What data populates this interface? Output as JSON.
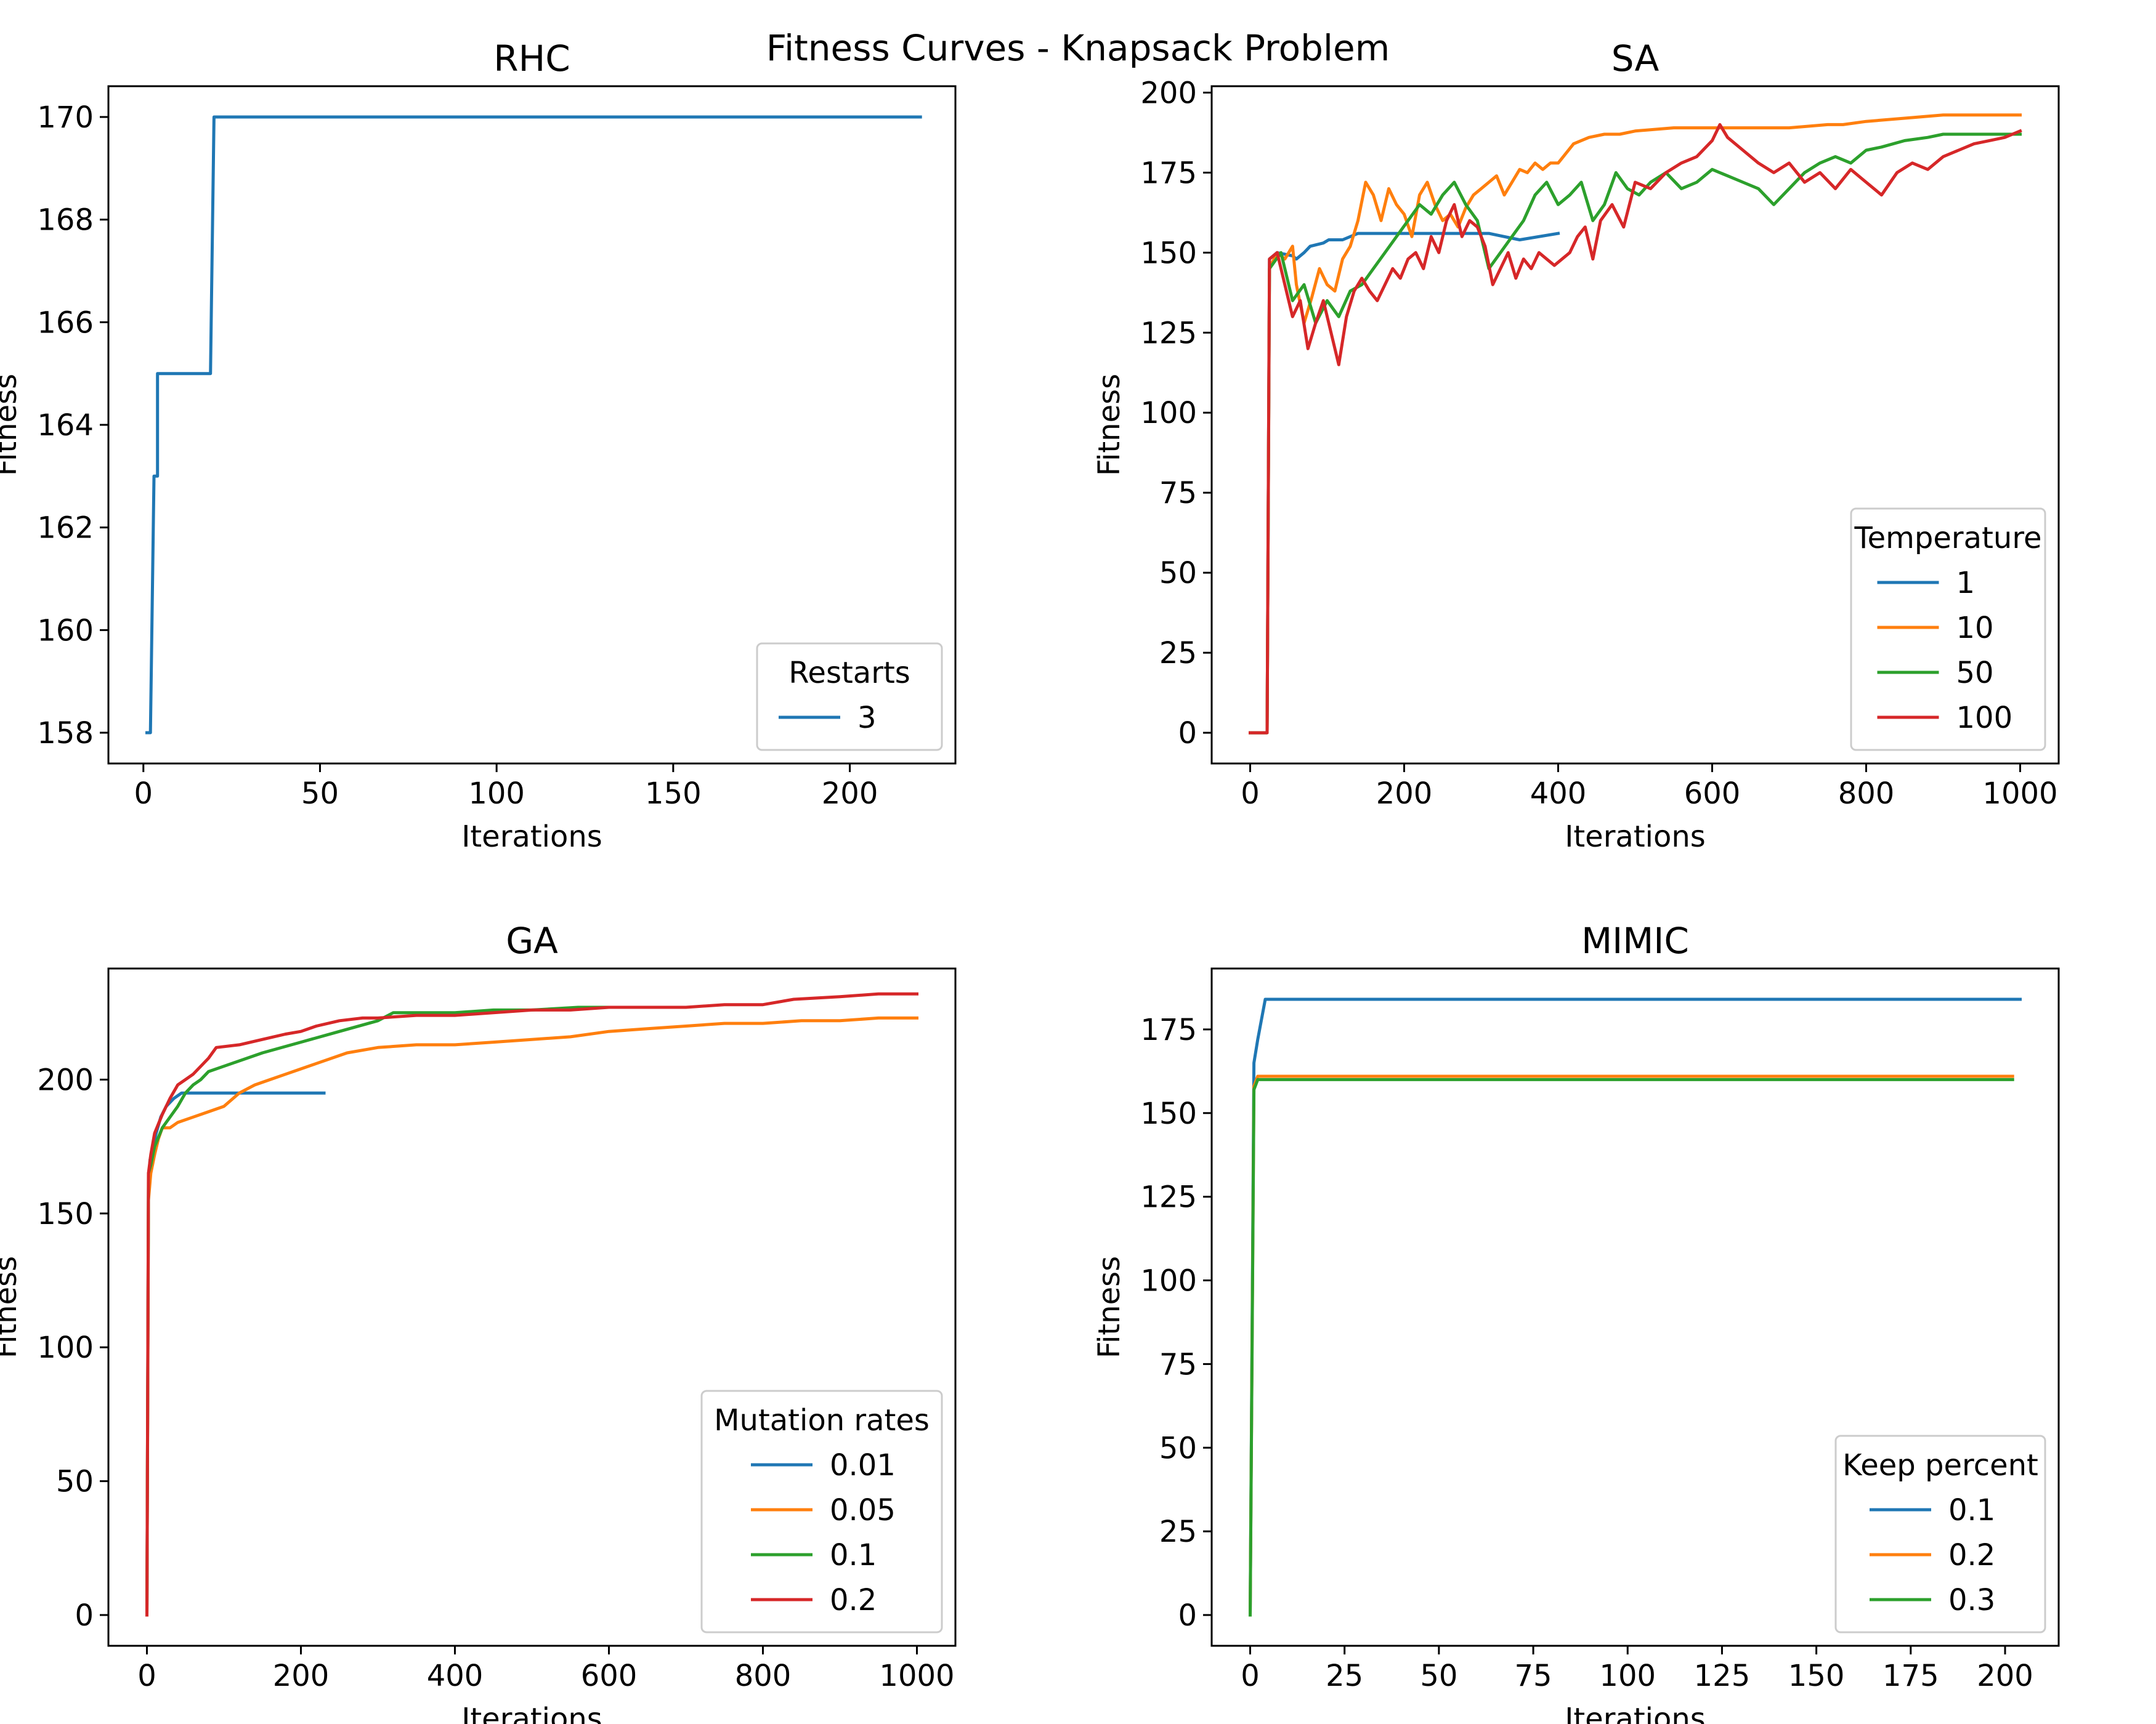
{
  "figure_title": "Fitness Curves - Knapsack Problem",
  "colors": {
    "blue": "#1f77b4",
    "orange": "#ff7f0e",
    "green": "#2ca02c",
    "red": "#d62728"
  },
  "chart_data": [
    {
      "id": "rhc",
      "type": "line",
      "title": "RHC",
      "xlabel": "Iterations",
      "ylabel": "Fitness",
      "xlim": [
        -9.9,
        229.9
      ],
      "ylim": [
        157.4,
        170.6
      ],
      "xticks": [
        0,
        50,
        100,
        150,
        200
      ],
      "yticks": [
        158,
        160,
        162,
        164,
        166,
        168,
        170
      ],
      "legend": {
        "title": "Restarts",
        "placement": "lower right"
      },
      "series": [
        {
          "name": "3",
          "color": "#1f77b4",
          "x": [
            1,
            2,
            3,
            3,
            4,
            4,
            19,
            20,
            20,
            220
          ],
          "y": [
            158,
            158,
            163,
            163,
            163,
            165,
            165,
            170,
            170,
            170
          ]
        }
      ]
    },
    {
      "id": "sa",
      "type": "line",
      "title": "SA",
      "xlabel": "Iterations",
      "ylabel": "Fitness",
      "xlim": [
        -50,
        1050
      ],
      "ylim": [
        -9.6,
        202
      ],
      "xticks": [
        0,
        200,
        400,
        600,
        800,
        1000
      ],
      "yticks": [
        0,
        25,
        50,
        75,
        100,
        125,
        150,
        175,
        200
      ],
      "legend": {
        "title": "Temperature",
        "placement": "lower right"
      },
      "series": [
        {
          "name": "1",
          "color": "#1f77b4",
          "x": [
            0,
            22,
            25,
            35,
            55,
            60,
            70,
            78,
            95,
            102,
            120,
            140,
            180,
            310,
            350,
            400
          ],
          "y": [
            0,
            0,
            148,
            150,
            149,
            148,
            150,
            152,
            153,
            154,
            154,
            156,
            156,
            156,
            154,
            156
          ]
        },
        {
          "name": "10",
          "color": "#ff7f0e",
          "x": [
            0,
            22,
            25,
            35,
            45,
            55,
            60,
            70,
            80,
            90,
            100,
            110,
            120,
            130,
            140,
            150,
            160,
            170,
            180,
            190,
            200,
            210,
            220,
            230,
            240,
            250,
            260,
            270,
            280,
            290,
            300,
            310,
            320,
            330,
            340,
            350,
            360,
            370,
            380,
            390,
            400,
            420,
            440,
            460,
            480,
            500,
            550,
            600,
            650,
            700,
            750,
            770,
            800,
            850,
            900,
            950,
            1000
          ],
          "y": [
            0,
            0,
            145,
            150,
            148,
            152,
            140,
            128,
            136,
            145,
            140,
            138,
            148,
            152,
            160,
            172,
            168,
            160,
            170,
            165,
            162,
            155,
            168,
            172,
            165,
            160,
            162,
            158,
            164,
            168,
            170,
            172,
            174,
            168,
            172,
            176,
            175,
            178,
            176,
            178,
            178,
            184,
            186,
            187,
            187,
            188,
            189,
            189,
            189,
            189,
            190,
            190,
            191,
            192,
            193,
            193,
            193
          ]
        },
        {
          "name": "50",
          "color": "#2ca02c",
          "x": [
            0,
            22,
            25,
            40,
            55,
            70,
            85,
            100,
            115,
            130,
            145,
            160,
            175,
            190,
            205,
            220,
            235,
            250,
            265,
            280,
            295,
            310,
            325,
            340,
            355,
            370,
            385,
            400,
            415,
            430,
            445,
            460,
            475,
            490,
            505,
            520,
            540,
            560,
            580,
            600,
            620,
            640,
            660,
            680,
            700,
            720,
            740,
            760,
            780,
            800,
            820,
            850,
            880,
            900,
            950,
            1000
          ],
          "y": [
            0,
            0,
            145,
            150,
            135,
            140,
            128,
            135,
            130,
            138,
            140,
            145,
            150,
            155,
            160,
            165,
            162,
            168,
            172,
            165,
            160,
            145,
            150,
            155,
            160,
            168,
            172,
            165,
            168,
            172,
            160,
            165,
            175,
            170,
            168,
            172,
            175,
            170,
            172,
            176,
            174,
            172,
            170,
            165,
            170,
            175,
            178,
            180,
            178,
            182,
            183,
            185,
            186,
            187,
            187,
            187
          ]
        },
        {
          "name": "100",
          "color": "#d62728",
          "x": [
            0,
            22,
            25,
            35,
            45,
            55,
            65,
            75,
            85,
            95,
            105,
            115,
            125,
            135,
            145,
            155,
            165,
            175,
            185,
            195,
            205,
            215,
            225,
            235,
            245,
            255,
            265,
            275,
            285,
            295,
            305,
            315,
            325,
            335,
            345,
            355,
            365,
            375,
            385,
            395,
            405,
            415,
            425,
            435,
            445,
            455,
            470,
            485,
            500,
            520,
            540,
            560,
            580,
            600,
            610,
            620,
            640,
            660,
            680,
            700,
            720,
            740,
            760,
            780,
            800,
            820,
            840,
            860,
            880,
            900,
            920,
            940,
            960,
            980,
            1000
          ],
          "y": [
            0,
            0,
            148,
            150,
            140,
            130,
            135,
            120,
            128,
            135,
            125,
            115,
            130,
            138,
            142,
            138,
            135,
            140,
            145,
            142,
            148,
            150,
            145,
            155,
            150,
            160,
            165,
            155,
            160,
            158,
            152,
            140,
            145,
            150,
            142,
            148,
            145,
            150,
            148,
            146,
            148,
            150,
            155,
            158,
            148,
            160,
            165,
            158,
            172,
            170,
            175,
            178,
            180,
            185,
            190,
            186,
            182,
            178,
            175,
            178,
            172,
            175,
            170,
            176,
            172,
            168,
            175,
            178,
            176,
            180,
            182,
            184,
            185,
            186,
            188
          ]
        }
      ]
    },
    {
      "id": "ga",
      "type": "line",
      "title": "GA",
      "xlabel": "Iterations",
      "ylabel": "Fitness",
      "xlim": [
        -50,
        1050
      ],
      "ylim": [
        -11.5,
        241.5
      ],
      "xticks": [
        0,
        200,
        400,
        600,
        800,
        1000
      ],
      "yticks": [
        0,
        50,
        100,
        150,
        200
      ],
      "legend": {
        "title": "Mutation rates",
        "placement": "lower right"
      },
      "series": [
        {
          "name": "0.01",
          "color": "#1f77b4",
          "x": [
            0,
            2,
            4,
            8,
            12,
            18,
            25,
            35,
            45,
            60,
            230
          ],
          "y": [
            0,
            160,
            170,
            175,
            180,
            186,
            190,
            193,
            195,
            195,
            195
          ]
        },
        {
          "name": "0.05",
          "color": "#ff7f0e",
          "x": [
            0,
            2,
            5,
            10,
            15,
            20,
            30,
            40,
            60,
            80,
            100,
            120,
            140,
            160,
            180,
            200,
            220,
            260,
            300,
            350,
            400,
            450,
            500,
            550,
            600,
            650,
            700,
            750,
            800,
            850,
            900,
            950,
            1000
          ],
          "y": [
            0,
            155,
            165,
            172,
            178,
            182,
            182,
            184,
            186,
            188,
            190,
            195,
            198,
            200,
            202,
            204,
            206,
            210,
            212,
            213,
            213,
            214,
            215,
            216,
            218,
            219,
            220,
            221,
            221,
            222,
            222,
            223,
            223
          ]
        },
        {
          "name": "0.1",
          "color": "#2ca02c",
          "x": [
            0,
            2,
            5,
            10,
            20,
            30,
            40,
            50,
            60,
            70,
            80,
            100,
            150,
            200,
            250,
            300,
            320,
            400,
            450,
            500,
            560,
            600,
            660
          ],
          "y": [
            0,
            165,
            168,
            175,
            182,
            186,
            190,
            195,
            198,
            200,
            203,
            205,
            210,
            214,
            218,
            222,
            225,
            225,
            226,
            226,
            227,
            227,
            227
          ]
        },
        {
          "name": "0.2",
          "color": "#d62728",
          "x": [
            0,
            2,
            5,
            10,
            20,
            30,
            40,
            50,
            60,
            70,
            80,
            90,
            120,
            150,
            180,
            200,
            220,
            250,
            280,
            300,
            350,
            400,
            450,
            500,
            550,
            600,
            650,
            700,
            750,
            800,
            840,
            900,
            950,
            1000
          ],
          "y": [
            0,
            165,
            172,
            180,
            187,
            193,
            198,
            200,
            202,
            205,
            208,
            212,
            213,
            215,
            217,
            218,
            220,
            222,
            223,
            223,
            224,
            224,
            225,
            226,
            226,
            227,
            227,
            227,
            228,
            228,
            230,
            231,
            232,
            232
          ]
        }
      ]
    },
    {
      "id": "mimic",
      "type": "line",
      "title": "MIMIC",
      "xlabel": "Iterations",
      "ylabel": "Fitness",
      "xlim": [
        -10.2,
        214.2
      ],
      "ylim": [
        -9.2,
        193.2
      ],
      "xticks": [
        0,
        25,
        50,
        75,
        100,
        125,
        150,
        175,
        200
      ],
      "yticks": [
        0,
        25,
        50,
        75,
        100,
        125,
        150,
        175
      ],
      "legend": {
        "title": "Keep percent",
        "placement": "lower right"
      },
      "series": [
        {
          "name": "0.1",
          "color": "#1f77b4",
          "x": [
            0,
            1,
            2,
            3,
            4,
            204
          ],
          "y": [
            0,
            165,
            172,
            178,
            184,
            184
          ]
        },
        {
          "name": "0.2",
          "color": "#ff7f0e",
          "x": [
            0,
            1,
            2,
            202
          ],
          "y": [
            0,
            158,
            161,
            161
          ]
        },
        {
          "name": "0.3",
          "color": "#2ca02c",
          "x": [
            0,
            1,
            2,
            202
          ],
          "y": [
            0,
            157,
            160,
            160
          ]
        }
      ]
    }
  ]
}
